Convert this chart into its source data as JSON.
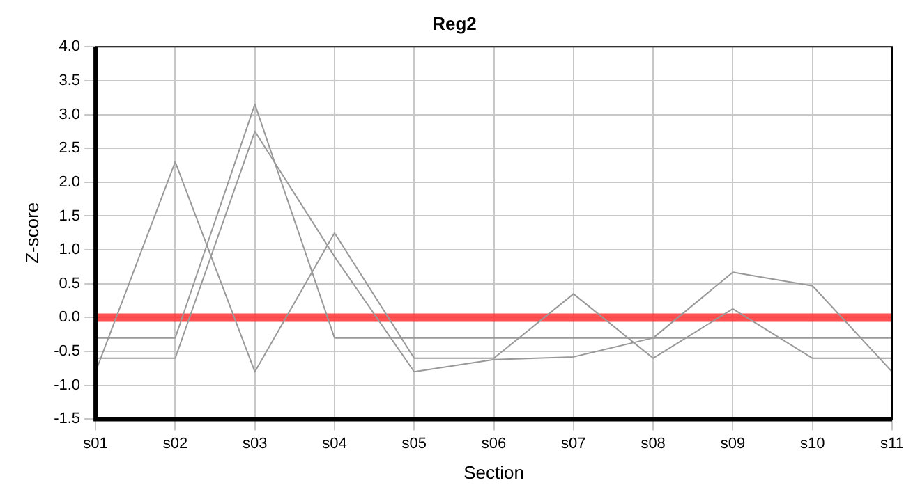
{
  "chart_data": {
    "type": "line",
    "title": "Reg2",
    "xlabel": "Section",
    "ylabel": "Z-score",
    "categories": [
      "s01",
      "s02",
      "s03",
      "s04",
      "s05",
      "s06",
      "s07",
      "s08",
      "s09",
      "s10",
      "s11"
    ],
    "series": [
      {
        "color": "#999999",
        "values": [
          -0.8,
          2.3,
          -0.8,
          1.25,
          -0.6,
          -0.6,
          0.35,
          -0.6,
          0.13,
          -0.6,
          -0.6
        ]
      },
      {
        "color": "#999999",
        "values": [
          -0.6,
          -0.6,
          2.75,
          0.9,
          -0.8,
          -0.62,
          -0.58,
          -0.3,
          0.67,
          0.47,
          -0.8
        ]
      },
      {
        "color": "#999999",
        "values": [
          -0.3,
          -0.3,
          3.15,
          -0.3,
          -0.3,
          -0.3,
          -0.3,
          -0.3,
          -0.3,
          -0.3,
          -0.3
        ]
      }
    ],
    "ylim": [
      -1.5,
      4.0
    ],
    "yticks": [
      {
        "value": -1.5,
        "label": "-1.5"
      },
      {
        "value": -1,
        "label": "-1.0"
      },
      {
        "value": -0.5,
        "label": "-0.5"
      },
      {
        "value": 0,
        "label": "0.0"
      },
      {
        "value": 0.5,
        "label": "0.5"
      },
      {
        "value": 1,
        "label": "1.0"
      },
      {
        "value": 1.5,
        "label": "1.5"
      },
      {
        "value": 2,
        "label": "2.0"
      },
      {
        "value": 2.5,
        "label": "2.5"
      },
      {
        "value": 3,
        "label": "3.0"
      },
      {
        "value": 3.5,
        "label": "3.5"
      },
      {
        "value": 4,
        "label": "4.0"
      }
    ],
    "ref_lines": [
      {
        "axis": "y",
        "value": 0,
        "color": "#ff3333"
      }
    ],
    "grid": true,
    "legend": false,
    "marker": "none",
    "line_style": "solid"
  }
}
